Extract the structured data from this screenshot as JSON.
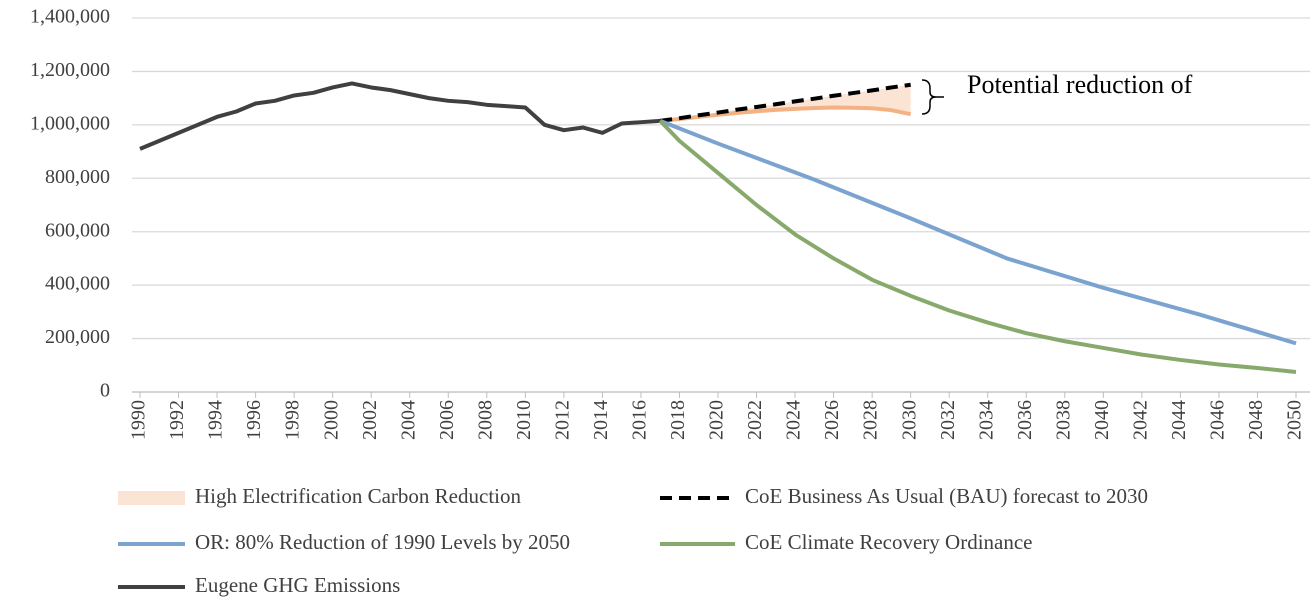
{
  "chart_data": {
    "type": "line",
    "annotation": "Potential reduction of",
    "xlim": [
      1990,
      2050
    ],
    "xticks": [
      1990,
      1992,
      1994,
      1996,
      1998,
      2000,
      2002,
      2004,
      2006,
      2008,
      2010,
      2012,
      2014,
      2016,
      2018,
      2020,
      2022,
      2024,
      2026,
      2028,
      2030,
      2032,
      2034,
      2036,
      2038,
      2040,
      2042,
      2044,
      2046,
      2048,
      2050
    ],
    "ylim": [
      0,
      1400000
    ],
    "yticks": [
      0,
      {
        "value": 200000,
        "label": "200,000"
      },
      {
        "value": 400000,
        "label": "400,000"
      },
      {
        "value": 600000,
        "label": "600,000"
      },
      {
        "value": 800000,
        "label": "800,000"
      },
      {
        "value": 1000000,
        "label": "1,000,000"
      },
      {
        "value": 1200000,
        "label": "1,200,000"
      },
      {
        "value": 1400000,
        "label": "1,400,000"
      }
    ],
    "grid": true,
    "series": [
      {
        "name": "High Electrification Carbon Reduction",
        "color": "#f4b183",
        "type": "band",
        "x": [
          2017,
          2018,
          2019,
          2020,
          2021,
          2022,
          2023,
          2024,
          2025,
          2026,
          2027,
          2028,
          2029,
          2030
        ],
        "values": [
          1015000,
          1022000,
          1030000,
          1038000,
          1045000,
          1051000,
          1056000,
          1060000,
          1063000,
          1065000,
          1064000,
          1062000,
          1055000,
          1040000
        ]
      },
      {
        "name": "CoE Business As Usual (BAU) forecast to 2030",
        "color": "#000000",
        "dashed": true,
        "x": [
          2017,
          2018,
          2019,
          2020,
          2021,
          2022,
          2023,
          2024,
          2025,
          2026,
          2027,
          2028,
          2029,
          2030
        ],
        "values": [
          1015000,
          1025000,
          1036000,
          1046000,
          1057000,
          1067000,
          1077000,
          1088000,
          1098000,
          1109000,
          1119000,
          1129000,
          1140000,
          1150000
        ]
      },
      {
        "name": "OR: 80% Reduction of 1990 Levels by 2050",
        "color": "#7ba3cf",
        "x": [
          2017,
          2020,
          2025,
          2030,
          2035,
          2040,
          2045,
          2050
        ],
        "values": [
          1015000,
          930000,
          795000,
          650000,
          500000,
          390000,
          290000,
          182000
        ]
      },
      {
        "name": "CoE Climate Recovery Ordinance",
        "color": "#87a96b",
        "x": [
          2017,
          2018,
          2020,
          2022,
          2024,
          2026,
          2028,
          2030,
          2032,
          2034,
          2036,
          2038,
          2040,
          2042,
          2044,
          2046,
          2048,
          2050
        ],
        "values": [
          1015000,
          940000,
          820000,
          700000,
          590000,
          500000,
          420000,
          360000,
          305000,
          260000,
          220000,
          190000,
          165000,
          140000,
          120000,
          103000,
          90000,
          75000
        ]
      },
      {
        "name": "Eugene GHG Emissions",
        "color": "#404040",
        "x": [
          1990,
          1991,
          1992,
          1993,
          1994,
          1995,
          1996,
          1997,
          1998,
          1999,
          2000,
          2001,
          2002,
          2003,
          2004,
          2005,
          2006,
          2007,
          2008,
          2009,
          2010,
          2011,
          2012,
          2013,
          2014,
          2015,
          2016,
          2017
        ],
        "values": [
          910000,
          940000,
          970000,
          1000000,
          1030000,
          1050000,
          1080000,
          1090000,
          1110000,
          1120000,
          1140000,
          1155000,
          1140000,
          1130000,
          1115000,
          1100000,
          1090000,
          1085000,
          1075000,
          1070000,
          1065000,
          1000000,
          980000,
          990000,
          970000,
          1005000,
          1010000,
          1015000
        ]
      }
    ]
  }
}
